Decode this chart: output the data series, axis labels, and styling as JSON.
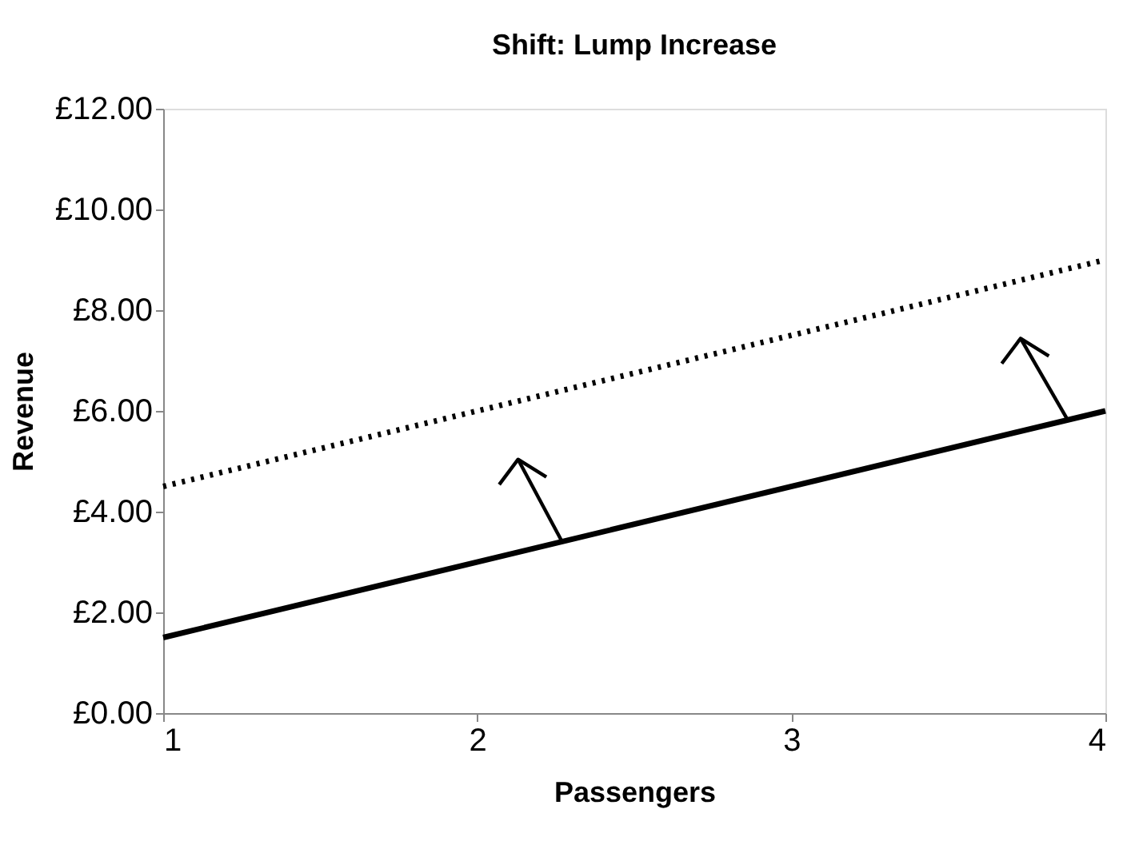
{
  "chart_data": {
    "type": "line",
    "title": "Shift: Lump Increase",
    "xlabel": "Passengers",
    "ylabel": "Revenue",
    "x": [
      1,
      4
    ],
    "series": [
      {
        "color": "#000000",
        "values": [
          1.5,
          6.0
        ],
        "line_style": "solid"
      },
      {
        "color": "#000000",
        "values": [
          4.5,
          9.0
        ],
        "line_style": "dotted"
      }
    ],
    "xlim": [
      1,
      4
    ],
    "xticks": [
      1,
      2,
      3,
      4
    ],
    "ylim": [
      0,
      12
    ],
    "yticks": [
      {
        "value": 0,
        "label": "£0.00"
      },
      {
        "value": 2,
        "label": "£2.00"
      },
      {
        "value": 4,
        "label": "£4.00"
      },
      {
        "value": 6,
        "label": "£6.00"
      },
      {
        "value": 8,
        "label": "£8.00"
      },
      {
        "value": 10,
        "label": "£10.00"
      },
      {
        "value": 12,
        "label": "£12.00"
      }
    ],
    "grid": false,
    "marker": "none"
  }
}
